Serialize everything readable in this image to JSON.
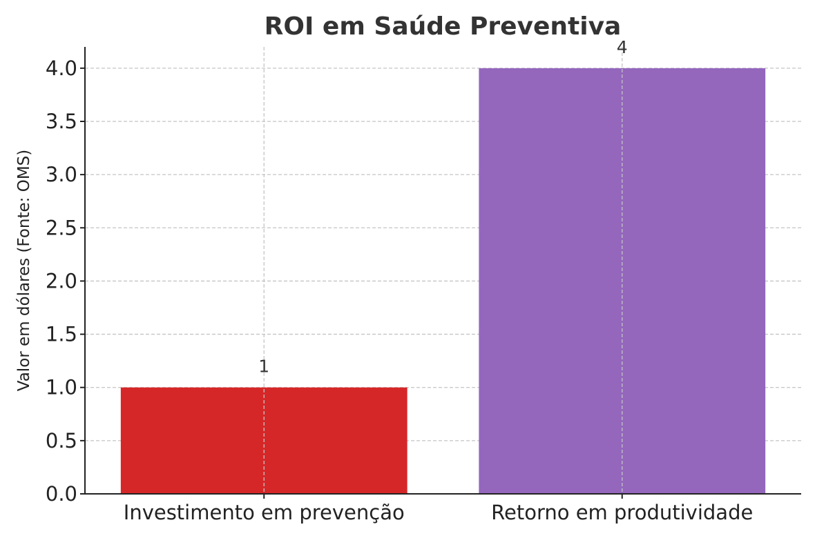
{
  "chart_data": {
    "type": "bar",
    "title": "ROI em Saúde Preventiva",
    "xlabel": "",
    "ylabel": "Valor em dólares (Fonte: OMS)",
    "categories": [
      "Investimento em prevenção",
      "Retorno em produtividade"
    ],
    "values": [
      1,
      4
    ],
    "data_labels": [
      "1",
      "4"
    ],
    "colors": [
      "#d62728",
      "#9467bd"
    ],
    "ylim": [
      0,
      4.2
    ],
    "yticks": [
      0.0,
      0.5,
      1.0,
      1.5,
      2.0,
      2.5,
      3.0,
      3.5,
      4.0
    ],
    "ytick_labels": [
      "0.0",
      "0.5",
      "1.0",
      "1.5",
      "2.0",
      "2.5",
      "3.0",
      "3.5",
      "4.0"
    ],
    "grid": true,
    "legend": "none"
  }
}
